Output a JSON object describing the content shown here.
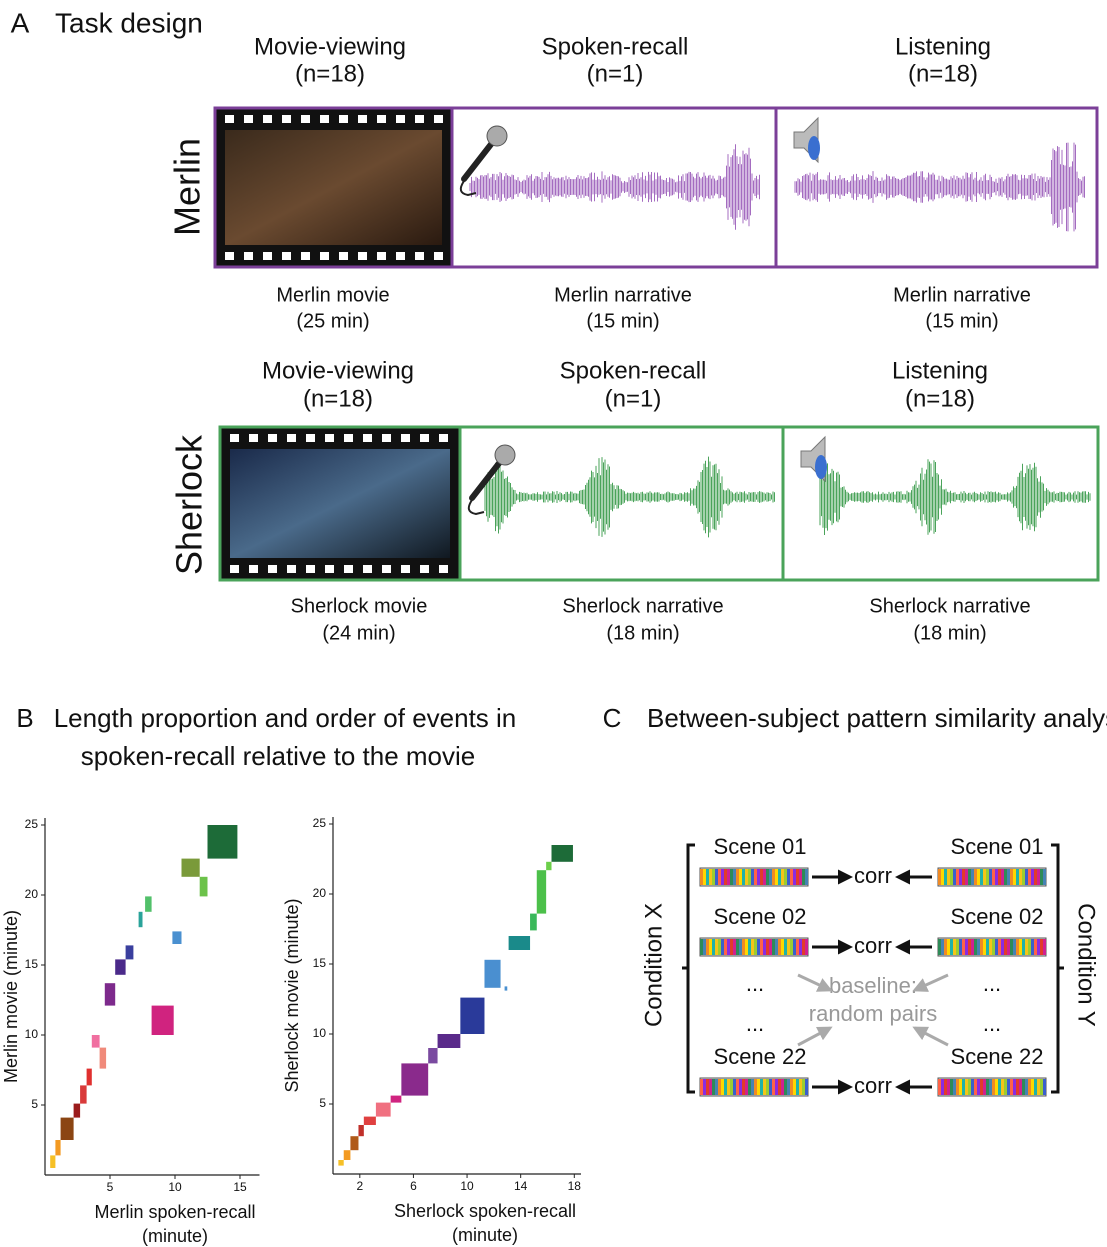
{
  "panel_a": {
    "label": "A",
    "title": "Task design",
    "rows": [
      {
        "name": "Merlin",
        "color": "#7b3f98",
        "conditions": [
          {
            "title": "Movie-viewing",
            "n": "(n=18)",
            "stimulus": "Merlin movie",
            "duration": "(25 min)"
          },
          {
            "title": "Spoken-recall",
            "n": "(n=1)",
            "stimulus": "Merlin narrative",
            "duration": "(15 min)"
          },
          {
            "title": "Listening",
            "n": "(n=18)",
            "stimulus": "Merlin narrative",
            "duration": "(15 min)"
          }
        ]
      },
      {
        "name": "Sherlock",
        "color": "#4aa35a",
        "conditions": [
          {
            "title": "Movie-viewing",
            "n": "(n=18)",
            "stimulus": "Sherlock movie",
            "duration": "(24 min)"
          },
          {
            "title": "Spoken-recall",
            "n": "(n=1)",
            "stimulus": "Sherlock narrative",
            "duration": "(18 min)"
          },
          {
            "title": "Listening",
            "n": "(n=18)",
            "stimulus": "Sherlock narrative",
            "duration": "(18 min)"
          }
        ]
      }
    ]
  },
  "panel_b": {
    "label": "B",
    "title": [
      "Length proportion and order of events in",
      "spoken-recall relative to the movie"
    ]
  },
  "chart_data": [
    {
      "type": "rect",
      "xlabel": [
        "Merlin spoken-recall",
        "(minute)"
      ],
      "ylabel": "Merlin movie (minute)",
      "xlim": [
        0,
        16.5
      ],
      "ylim": [
        0,
        25.5
      ],
      "xticks": [
        5,
        10,
        15
      ],
      "yticks": [
        5,
        10,
        15,
        20,
        25
      ],
      "x_start": [
        0.4,
        0.8,
        1.2,
        2.2,
        2.7,
        3.2,
        4.2,
        3.6,
        8.2,
        4.6,
        5.4,
        6.2,
        9.8,
        7.2,
        7.7,
        10.5,
        11.9,
        12.5
      ],
      "x_end": [
        0.8,
        1.2,
        2.2,
        2.7,
        3.2,
        3.6,
        4.7,
        4.2,
        9.9,
        5.4,
        6.2,
        6.8,
        10.5,
        7.5,
        8.2,
        11.9,
        12.5,
        14.8
      ],
      "y_start": [
        0.5,
        1.4,
        2.5,
        4.1,
        5.1,
        6.4,
        7.6,
        9.1,
        10.0,
        12.1,
        14.3,
        15.4,
        16.5,
        17.7,
        18.8,
        21.3,
        19.9,
        22.6
      ],
      "y_end": [
        1.4,
        2.5,
        4.1,
        5.1,
        6.4,
        7.6,
        9.1,
        10.0,
        12.1,
        13.7,
        15.4,
        16.4,
        17.4,
        18.8,
        19.9,
        22.6,
        21.3,
        25.0
      ],
      "colors": [
        "#f6c026",
        "#f39a22",
        "#8b4513",
        "#9b1c1c",
        "#d93a3a",
        "#e0302f",
        "#f08a7a",
        "#f06fa0",
        "#d0237f",
        "#7d2a8c",
        "#4b2a8a",
        "#3a3f9e",
        "#4a90d0",
        "#2aa39a",
        "#52c06a",
        "#7a9a3a",
        "#6cc24a",
        "#1d6b38"
      ]
    },
    {
      "type": "rect",
      "xlabel": [
        "Sherlock spoken-recall",
        "(minute)"
      ],
      "ylabel": "Sherlock movie (minute)",
      "xlim": [
        0,
        18.5
      ],
      "ylim": [
        0,
        25.5
      ],
      "xticks": [
        2,
        6,
        10,
        14,
        18
      ],
      "yticks": [
        5,
        10,
        15,
        20,
        25
      ],
      "x_start": [
        0.4,
        0.8,
        1.3,
        1.9,
        2.3,
        3.2,
        4.3,
        5.1,
        7.1,
        7.8,
        9.5,
        12.8,
        11.3,
        13.1,
        14.7,
        15.2,
        15.9,
        16.3
      ],
      "x_end": [
        0.8,
        1.3,
        1.9,
        2.3,
        3.2,
        4.3,
        5.1,
        7.1,
        7.8,
        9.5,
        11.3,
        13.0,
        12.5,
        14.7,
        15.2,
        15.9,
        16.3,
        17.9
      ],
      "y_start": [
        0.6,
        1.0,
        1.7,
        2.7,
        3.5,
        4.1,
        5.1,
        5.6,
        7.9,
        9.0,
        10.0,
        13.1,
        13.3,
        16.0,
        17.4,
        18.6,
        21.7,
        22.3
      ],
      "y_end": [
        1.0,
        1.7,
        2.7,
        3.5,
        4.1,
        5.1,
        5.6,
        7.9,
        9.0,
        10.0,
        12.6,
        13.4,
        15.3,
        17.0,
        18.6,
        21.7,
        22.3,
        23.5
      ],
      "colors": [
        "#f6c026",
        "#f39a22",
        "#b05a1a",
        "#c0302a",
        "#e04040",
        "#f07080",
        "#d0237f",
        "#8a2a8c",
        "#7a4aa0",
        "#5a2a8a",
        "#2a3a9a",
        "#4a90d0",
        "#4a8fd0",
        "#1a8a8a",
        "#3ab85a",
        "#4cc04a",
        "#6ccf4a",
        "#1d6b38"
      ]
    }
  ],
  "panel_c": {
    "label": "C",
    "title": "Between-subject pattern similarity analysis",
    "condition_x": "Condition X",
    "condition_y": "Condition Y",
    "rows": [
      {
        "left": "Scene 01",
        "right": "Scene 01",
        "corr": "corr"
      },
      {
        "left": "Scene 02",
        "right": "Scene 02",
        "corr": "corr"
      },
      {
        "left": "Scene 22",
        "right": "Scene 22",
        "corr": "corr"
      }
    ],
    "ellipsis": [
      "...",
      "...",
      "...",
      "..."
    ],
    "baseline": [
      "baseline:",
      "random pairs"
    ]
  }
}
